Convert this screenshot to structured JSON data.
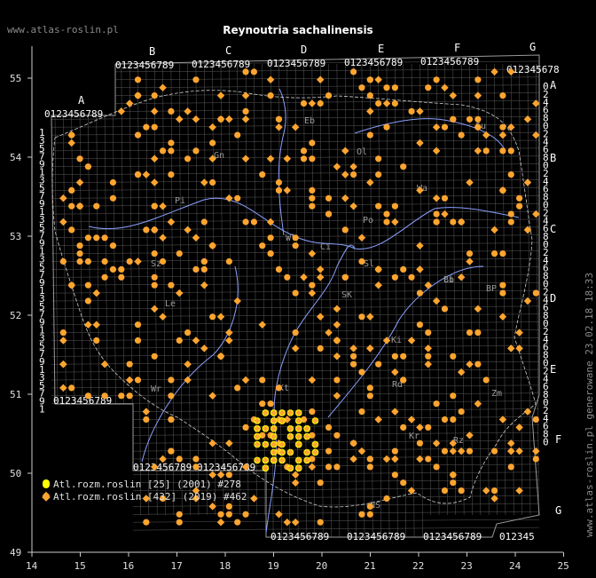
{
  "header": {
    "site": "www.atlas-roslin.pl",
    "title": "Reynoutria sachalinensis",
    "side_note": "www.atlas-roslin.pl generowane 23.02.18 18:33"
  },
  "axes": {
    "lon_ticks": [
      "14",
      "15",
      "16",
      "17",
      "18",
      "19",
      "20",
      "21",
      "22",
      "23",
      "24",
      "25"
    ],
    "lat_ticks": [
      "49",
      "50",
      "51",
      "52",
      "53",
      "54",
      "55"
    ]
  },
  "atpol": {
    "letters_top": [
      "B",
      "C",
      "D",
      "E",
      "F",
      "G"
    ],
    "letter_A": "A",
    "letters_right": [
      "A",
      "B",
      "C",
      "D",
      "E"
    ],
    "letters_right_low": [
      "F",
      "G"
    ],
    "digits": "0123456789"
  },
  "legend": [
    {
      "label": "Atl.rozm.roslin [25] (2001) #278",
      "symbol": "circle",
      "color": "#ffff00"
    },
    {
      "label": "Atl.rozm.roslin [432] (2019) #462",
      "symbol": "diamond",
      "color": "#ffa530"
    }
  ],
  "colors": {
    "background": "#000000",
    "grid": "#5a5a5a",
    "rivers": "#8aa0ff",
    "border": "#cccccc",
    "record_new": "#ffa530",
    "record_old": "#ffff00"
  },
  "region_labels": [
    "Su",
    "Ol",
    "Eb",
    "Gn",
    "Pi",
    "Wl",
    "Ci",
    "Po",
    "Le",
    "Wr",
    "Kt",
    "Kr",
    "NS",
    "Rz",
    "Ki",
    "Rd",
    "SK",
    "Lb",
    "Zm",
    "BP",
    "Bi",
    "Sl",
    "Sz",
    "Wa"
  ]
}
